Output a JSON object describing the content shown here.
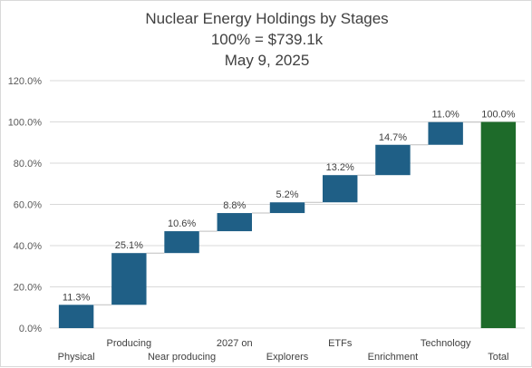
{
  "chart_data": {
    "type": "waterfall",
    "title": "Nuclear Energy Holdings by Stages",
    "subtitle_1": "100% = $739.1k",
    "subtitle_2": "May 9, 2025",
    "ylim": [
      0,
      120
    ],
    "yticks": [
      "0.0%",
      "20.0%",
      "40.0%",
      "60.0%",
      "80.0%",
      "100.0%",
      "120.0%"
    ],
    "categories": [
      "Physical",
      "Producing",
      "Near producing",
      "2027 on",
      "Explorers",
      "ETFs",
      "Enrichment",
      "Technology",
      "Total"
    ],
    "values": [
      11.3,
      25.1,
      10.6,
      8.8,
      5.2,
      13.2,
      14.7,
      11.0,
      100.0
    ],
    "labels": [
      "11.3%",
      "25.1%",
      "10.6%",
      "8.8%",
      "5.2%",
      "13.2%",
      "14.7%",
      "11.0%",
      "100.0%"
    ],
    "colors": {
      "step": "#1f5f86",
      "total": "#1e6b2a",
      "grid": "#d9d9d9",
      "connector": "#bfbfbf"
    },
    "grid": true,
    "legend": "none"
  }
}
